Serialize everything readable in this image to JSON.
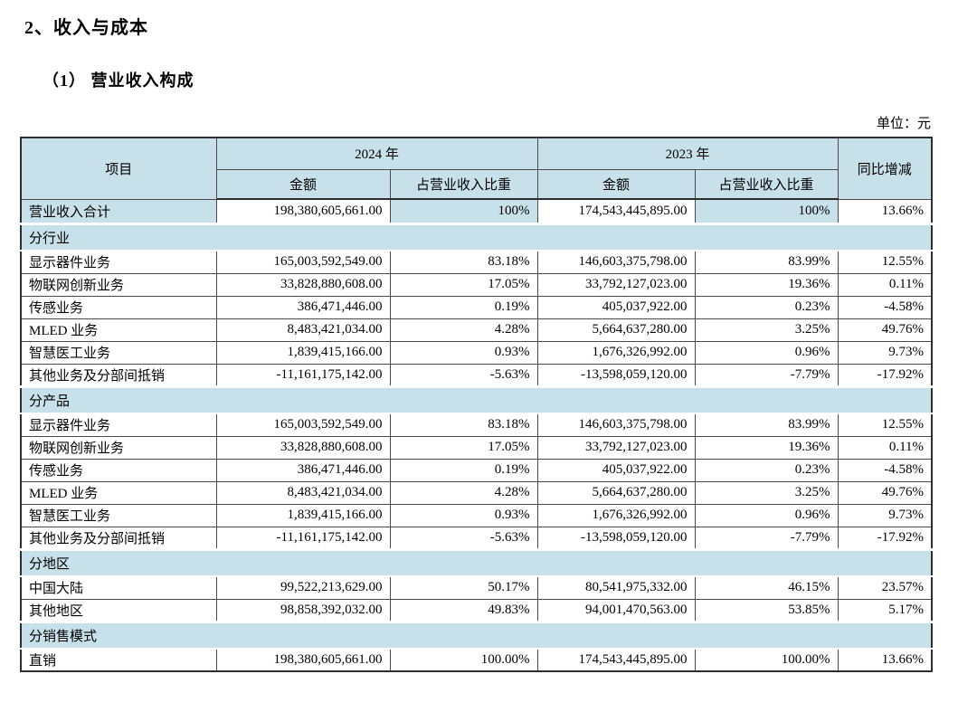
{
  "page": {
    "title": "2、收入与成本",
    "subtitle": "（1） 营业收入构成",
    "unit_label": "单位：元"
  },
  "colors": {
    "header_bg": "#c7e0e9",
    "border": "#4a4a4a",
    "outer_border": "#2e2e2e",
    "text": "#000000"
  },
  "table": {
    "columns": {
      "item": "项目",
      "year_2024": "2024 年",
      "year_2023": "2023 年",
      "amount": "金额",
      "proportion": "占营业收入比重",
      "yoy": "同比增减"
    },
    "rows": [
      {
        "type": "total",
        "label": "营业收入合计",
        "amount_2024": "198,380,605,661.00",
        "pct_2024": "100%",
        "amount_2023": "174,543,445,895.00",
        "pct_2023": "100%",
        "yoy": "13.66%"
      },
      {
        "type": "section",
        "label": "分行业"
      },
      {
        "type": "data",
        "label": "显示器件业务",
        "amount_2024": "165,003,592,549.00",
        "pct_2024": "83.18%",
        "amount_2023": "146,603,375,798.00",
        "pct_2023": "83.99%",
        "yoy": "12.55%"
      },
      {
        "type": "data",
        "label": "物联网创新业务",
        "amount_2024": "33,828,880,608.00",
        "pct_2024": "17.05%",
        "amount_2023": "33,792,127,023.00",
        "pct_2023": "19.36%",
        "yoy": "0.11%"
      },
      {
        "type": "data",
        "label": "传感业务",
        "amount_2024": "386,471,446.00",
        "pct_2024": "0.19%",
        "amount_2023": "405,037,922.00",
        "pct_2023": "0.23%",
        "yoy": "-4.58%"
      },
      {
        "type": "data",
        "label": "MLED 业务",
        "amount_2024": "8,483,421,034.00",
        "pct_2024": "4.28%",
        "amount_2023": "5,664,637,280.00",
        "pct_2023": "3.25%",
        "yoy": "49.76%"
      },
      {
        "type": "data",
        "label": "智慧医工业务",
        "amount_2024": "1,839,415,166.00",
        "pct_2024": "0.93%",
        "amount_2023": "1,676,326,992.00",
        "pct_2023": "0.96%",
        "yoy": "9.73%"
      },
      {
        "type": "data",
        "label": "其他业务及分部间抵销",
        "amount_2024": "-11,161,175,142.00",
        "pct_2024": "-5.63%",
        "amount_2023": "-13,598,059,120.00",
        "pct_2023": "-7.79%",
        "yoy": "-17.92%"
      },
      {
        "type": "section",
        "label": "分产品"
      },
      {
        "type": "data",
        "label": "显示器件业务",
        "amount_2024": "165,003,592,549.00",
        "pct_2024": "83.18%",
        "amount_2023": "146,603,375,798.00",
        "pct_2023": "83.99%",
        "yoy": "12.55%"
      },
      {
        "type": "data",
        "label": "物联网创新业务",
        "amount_2024": "33,828,880,608.00",
        "pct_2024": "17.05%",
        "amount_2023": "33,792,127,023.00",
        "pct_2023": "19.36%",
        "yoy": "0.11%"
      },
      {
        "type": "data",
        "label": "传感业务",
        "amount_2024": "386,471,446.00",
        "pct_2024": "0.19%",
        "amount_2023": "405,037,922.00",
        "pct_2023": "0.23%",
        "yoy": "-4.58%"
      },
      {
        "type": "data",
        "label": "MLED 业务",
        "amount_2024": "8,483,421,034.00",
        "pct_2024": "4.28%",
        "amount_2023": "5,664,637,280.00",
        "pct_2023": "3.25%",
        "yoy": "49.76%"
      },
      {
        "type": "data",
        "label": "智慧医工业务",
        "amount_2024": "1,839,415,166.00",
        "pct_2024": "0.93%",
        "amount_2023": "1,676,326,992.00",
        "pct_2023": "0.96%",
        "yoy": "9.73%"
      },
      {
        "type": "data",
        "label": "其他业务及分部间抵销",
        "amount_2024": "-11,161,175,142.00",
        "pct_2024": "-5.63%",
        "amount_2023": "-13,598,059,120.00",
        "pct_2023": "-7.79%",
        "yoy": "-17.92%"
      },
      {
        "type": "section",
        "label": "分地区"
      },
      {
        "type": "data",
        "label": "中国大陆",
        "amount_2024": "99,522,213,629.00",
        "pct_2024": "50.17%",
        "amount_2023": "80,541,975,332.00",
        "pct_2023": "46.15%",
        "yoy": "23.57%"
      },
      {
        "type": "data",
        "label": "其他地区",
        "amount_2024": "98,858,392,032.00",
        "pct_2024": "49.83%",
        "amount_2023": "94,001,470,563.00",
        "pct_2023": "53.85%",
        "yoy": "5.17%"
      },
      {
        "type": "section",
        "label": "分销售模式"
      },
      {
        "type": "data",
        "label": "直销",
        "amount_2024": "198,380,605,661.00",
        "pct_2024": "100.00%",
        "amount_2023": "174,543,445,895.00",
        "pct_2023": "100.00%",
        "yoy": "13.66%"
      }
    ]
  }
}
